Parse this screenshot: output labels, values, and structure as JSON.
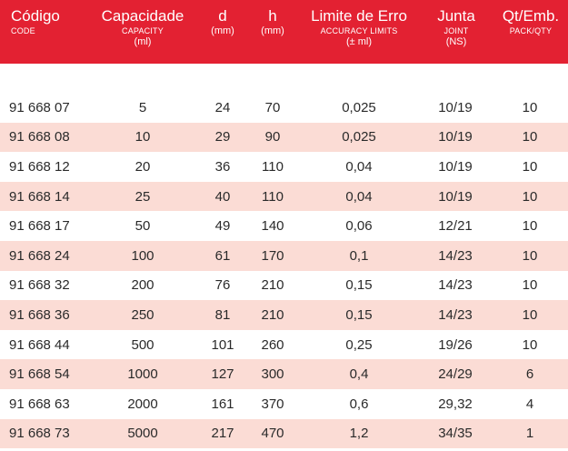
{
  "header": {
    "codigo": {
      "main": "Código",
      "sub": "CODE"
    },
    "capacidade": {
      "main": "Capacidade",
      "sub": "CAPACITY",
      "unit": "(ml)"
    },
    "d": {
      "main": "d",
      "unit": "(mm)"
    },
    "h": {
      "main": "h",
      "unit": "(mm)"
    },
    "limite": {
      "main": "Limite de Erro",
      "sub": "ACCURACY LIMITS",
      "unit": "(± ml)"
    },
    "junta": {
      "main": "Junta",
      "sub": "JOINT",
      "unit": "(NS)"
    },
    "qt": {
      "main": "Qt/Emb.",
      "sub": "PACK/QTY"
    }
  },
  "rows": [
    {
      "code": "91 668 07",
      "capacity": "5",
      "d": "24",
      "h": "70",
      "limit": "0,025",
      "joint": "10/19",
      "qty": "10"
    },
    {
      "code": "91 668 08",
      "capacity": "10",
      "d": "29",
      "h": "90",
      "limit": "0,025",
      "joint": "10/19",
      "qty": "10"
    },
    {
      "code": "91 668 12",
      "capacity": "20",
      "d": "36",
      "h": "110",
      "limit": "0,04",
      "joint": "10/19",
      "qty": "10"
    },
    {
      "code": "91 668 14",
      "capacity": "25",
      "d": "40",
      "h": "110",
      "limit": "0,04",
      "joint": "10/19",
      "qty": "10"
    },
    {
      "code": "91 668 17",
      "capacity": "50",
      "d": "49",
      "h": "140",
      "limit": "0,06",
      "joint": "12/21",
      "qty": "10"
    },
    {
      "code": "91 668 24",
      "capacity": "100",
      "d": "61",
      "h": "170",
      "limit": "0,1",
      "joint": "14/23",
      "qty": "10"
    },
    {
      "code": "91 668 32",
      "capacity": "200",
      "d": "76",
      "h": "210",
      "limit": "0,15",
      "joint": "14/23",
      "qty": "10"
    },
    {
      "code": "91 668 36",
      "capacity": "250",
      "d": "81",
      "h": "210",
      "limit": "0,15",
      "joint": "14/23",
      "qty": "10"
    },
    {
      "code": "91 668 44",
      "capacity": "500",
      "d": "101",
      "h": "260",
      "limit": "0,25",
      "joint": "19/26",
      "qty": "10"
    },
    {
      "code": "91 668 54",
      "capacity": "1000",
      "d": "127",
      "h": "300",
      "limit": "0,4",
      "joint": "24/29",
      "qty": "6"
    },
    {
      "code": "91 668 63",
      "capacity": "2000",
      "d": "161",
      "h": "370",
      "limit": "0,6",
      "joint": "29,32",
      "qty": "4"
    },
    {
      "code": "91 668 73",
      "capacity": "5000",
      "d": "217",
      "h": "470",
      "limit": "1,2",
      "joint": "34/35",
      "qty": "1"
    }
  ],
  "colors": {
    "header_bg": "#e32132",
    "stripe": "#fbdcd5",
    "text": "#2a2a2a"
  }
}
